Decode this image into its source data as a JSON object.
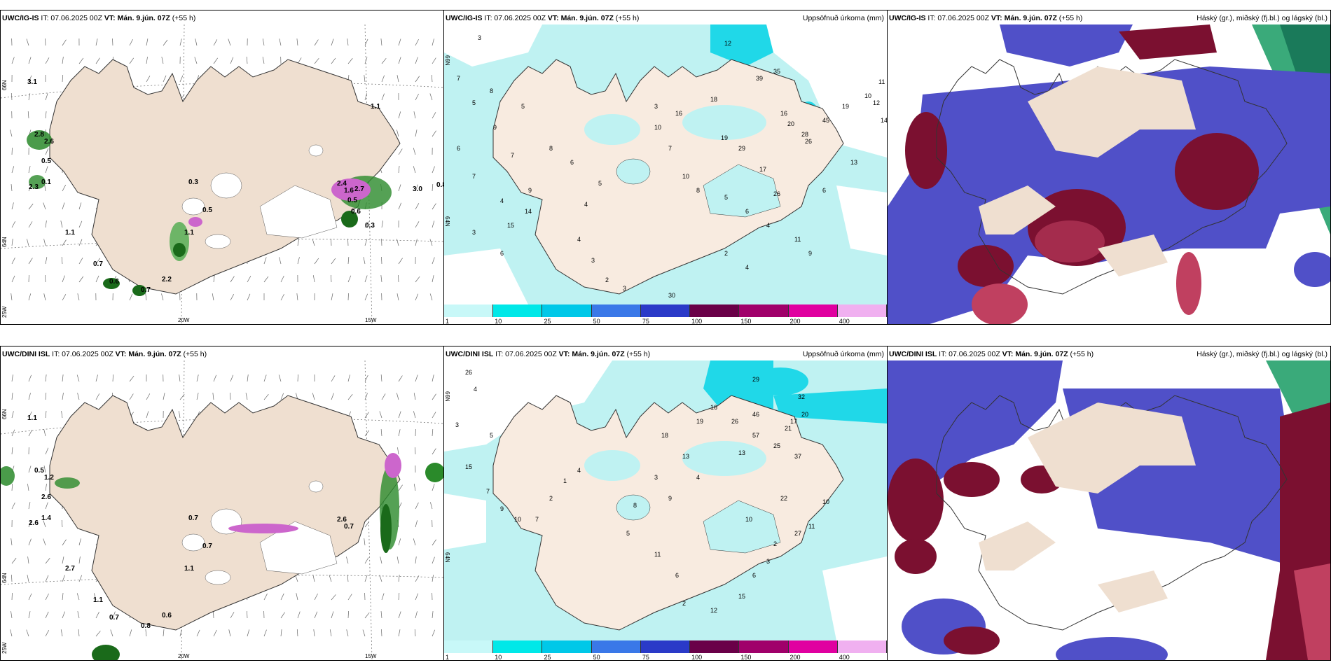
{
  "rows": [
    {
      "model_label": "UWC/IG-IS",
      "panels": [
        {
          "it_label": "IT: 07.06.2025 00Z",
          "vt_label": "VT: Mán. 9.jún. 07Z",
          "lead": "(+55 h)",
          "right_title": ""
        },
        {
          "it_label": "IT: 07.06.2025 00Z",
          "vt_label": "VT: Mán. 9.jún. 07Z",
          "lead": "(+55 h)",
          "right_title": "Uppsöfnuð úrkoma (mm)"
        },
        {
          "it_label": "IT: 07.06.2025 00Z",
          "vt_label": "VT: Mán. 9.jún. 07Z",
          "lead": "(+55 h)",
          "right_title": "Háský (gr.), miðský (fj.bl.) og lágský (bl.)"
        }
      ],
      "wind_values": [
        "3.1",
        "2.8",
        "2.6",
        "0.5",
        "2.3",
        "0.1",
        "1.1",
        "0.7",
        "0.6",
        "0.7",
        "2.2",
        "1.1",
        "0.3",
        "0.5",
        "2.4",
        "1.6",
        "2.7",
        "0.5",
        "0.6",
        "3.0",
        "0.8",
        "0.3",
        "1.1"
      ],
      "precip_values": [
        "3",
        "7",
        "5",
        "8",
        "7",
        "6",
        "9",
        "5",
        "7",
        "4",
        "3",
        "6",
        "14",
        "15",
        "9",
        "8",
        "6",
        "4",
        "5",
        "4",
        "3",
        "2",
        "3",
        "12",
        "35",
        "39",
        "16",
        "20",
        "28",
        "26",
        "45",
        "19",
        "11",
        "10",
        "12",
        "14",
        "6",
        "13",
        "3",
        "7",
        "10",
        "8",
        "5",
        "6",
        "4",
        "11",
        "9",
        "2",
        "4",
        "30",
        "10",
        "16",
        "18",
        "19",
        "29",
        "17",
        "26"
      ]
    },
    {
      "model_label": "UWC/DINI ISL",
      "panels": [
        {
          "it_label": "IT: 07.06.2025 00Z",
          "vt_label": "VT: Mán. 9.jún. 07Z",
          "lead": "(+55 h)",
          "right_title": ""
        },
        {
          "it_label": "IT: 07.06.2025 00Z",
          "vt_label": "VT: Mán. 9.jún. 07Z",
          "lead": "(+55 h)",
          "right_title": "Uppsöfnuð úrkoma (mm)"
        },
        {
          "it_label": "IT: 07.06.2025 00Z",
          "vt_label": "VT: Mán. 9.jún. 07Z",
          "lead": "(+55 h)",
          "right_title": "Háský (gr.), miðský (fj.bl.) og lágský (bl.)"
        }
      ],
      "wind_values": [
        "1.1",
        "0.5",
        "1.2",
        "2.6",
        "2.6",
        "1.4",
        "2.7",
        "1.1",
        "0.7",
        "0.8",
        "0.6",
        "1.1",
        "0.7",
        "0.7",
        "2.6",
        "0.7"
      ],
      "precip_values": [
        "26",
        "4",
        "3",
        "5",
        "15",
        "7",
        "9",
        "10",
        "7",
        "2",
        "1",
        "4",
        "18",
        "29",
        "32",
        "20",
        "17",
        "21",
        "46",
        "57",
        "26",
        "16",
        "19",
        "13",
        "25",
        "37",
        "22",
        "10",
        "4",
        "13",
        "3",
        "9",
        "8",
        "5",
        "11",
        "6",
        "2",
        "12",
        "15",
        "6",
        "3",
        "2",
        "27",
        "11",
        "10"
      ]
    }
  ],
  "graticule": {
    "lat_66": "66N",
    "lat_64": "64N",
    "lon_25": "25W",
    "lon_20": "20W",
    "lon_15": "15W"
  },
  "colorbar": {
    "ticks": [
      "1",
      "10",
      "25",
      "50",
      "75",
      "100",
      "150",
      "200",
      "400"
    ],
    "colors": [
      "#c8f8f8",
      "#00e8e8",
      "#00c8e8",
      "#3a78e8",
      "#2a3ac8",
      "#6a0048",
      "#a0006a",
      "#e000a0",
      "#f0b0f0"
    ]
  },
  "colors": {
    "land": "#efdfd0",
    "ocean_precip": "#bff2f2",
    "precip_heavy": "#20d8e8",
    "cloud_high": "#c04060",
    "cloud_mid": "#5050c8",
    "cloud_low": "#7b1030",
    "wind_green": "#2a8a2a",
    "wind_purple": "#cc66cc"
  }
}
